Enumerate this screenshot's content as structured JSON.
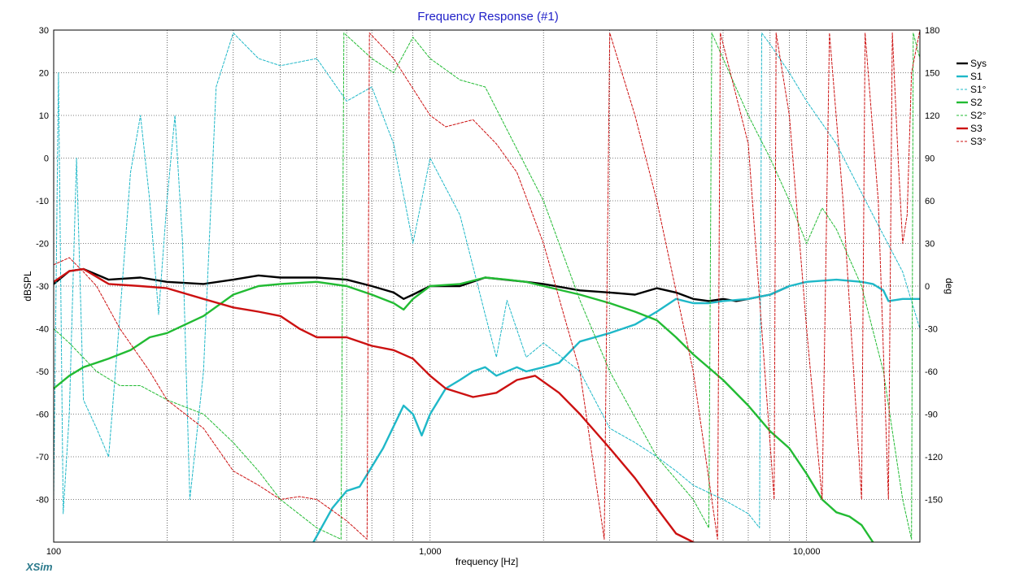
{
  "window": {
    "brand": "XSim"
  },
  "chart_data": {
    "type": "line",
    "title": "Frequency Response (#1)",
    "xlabel": "frequency [Hz]",
    "ylabel": "dBSPL",
    "y2label": "deg",
    "xscale": "log",
    "xlim": [
      100,
      20000
    ],
    "ylim": [
      -90,
      30
    ],
    "y2lim": [
      -180,
      180
    ],
    "x_tick_labels": [
      "100",
      "1,000",
      "10,000"
    ],
    "y_ticks": [
      30,
      20,
      10,
      0,
      -10,
      -20,
      -30,
      -40,
      -50,
      -60,
      -70,
      -80
    ],
    "y2_ticks": [
      180,
      150,
      120,
      90,
      60,
      30,
      0,
      -30,
      -60,
      -90,
      -120,
      -150
    ],
    "grid": true,
    "legend_position": "right",
    "series": [
      {
        "name": "Sys",
        "axis": "left",
        "style": "solid",
        "color": "#000000",
        "points": [
          [
            100,
            -29.5
          ],
          [
            110,
            -26.5
          ],
          [
            120,
            -26
          ],
          [
            140,
            -28.5
          ],
          [
            170,
            -28
          ],
          [
            200,
            -29
          ],
          [
            250,
            -29.5
          ],
          [
            300,
            -28.5
          ],
          [
            350,
            -27.5
          ],
          [
            400,
            -28
          ],
          [
            500,
            -28
          ],
          [
            600,
            -28.5
          ],
          [
            700,
            -30
          ],
          [
            800,
            -31.5
          ],
          [
            850,
            -33
          ],
          [
            900,
            -32
          ],
          [
            1000,
            -30
          ],
          [
            1200,
            -30
          ],
          [
            1400,
            -28
          ],
          [
            1800,
            -29
          ],
          [
            2000,
            -29.5
          ],
          [
            2500,
            -31
          ],
          [
            3000,
            -31.5
          ],
          [
            3500,
            -32
          ],
          [
            4000,
            -30.5
          ],
          [
            4500,
            -31.5
          ],
          [
            5000,
            -33
          ],
          [
            5500,
            -33.5
          ],
          [
            6000,
            -33
          ],
          [
            6500,
            -33.5
          ],
          [
            7000,
            -33
          ],
          [
            8000,
            -32
          ],
          [
            9000,
            -30
          ]
        ]
      },
      {
        "name": "S1",
        "axis": "left",
        "style": "solid",
        "color": "#1fb8c8",
        "points": [
          [
            490,
            -90
          ],
          [
            550,
            -82
          ],
          [
            600,
            -78
          ],
          [
            650,
            -77
          ],
          [
            750,
            -68
          ],
          [
            850,
            -58
          ],
          [
            900,
            -60
          ],
          [
            950,
            -65
          ],
          [
            1000,
            -60
          ],
          [
            1100,
            -54
          ],
          [
            1200,
            -52
          ],
          [
            1300,
            -50
          ],
          [
            1400,
            -49
          ],
          [
            1500,
            -51
          ],
          [
            1700,
            -49
          ],
          [
            1800,
            -50
          ],
          [
            2000,
            -49
          ],
          [
            2200,
            -48
          ],
          [
            2500,
            -43
          ],
          [
            3000,
            -41
          ],
          [
            3500,
            -39
          ],
          [
            4000,
            -36
          ],
          [
            4500,
            -33
          ],
          [
            5000,
            -34
          ],
          [
            5500,
            -34
          ],
          [
            6000,
            -33.5
          ],
          [
            7000,
            -33
          ],
          [
            8000,
            -32
          ],
          [
            9000,
            -30
          ],
          [
            10000,
            -29
          ],
          [
            12000,
            -28.5
          ],
          [
            14000,
            -29
          ],
          [
            15000,
            -29.5
          ],
          [
            16000,
            -31
          ],
          [
            16500,
            -33.5
          ],
          [
            18000,
            -33
          ],
          [
            20000,
            -33
          ]
        ]
      },
      {
        "name": "S1°",
        "axis": "right",
        "style": "dashed",
        "color": "#1fb8c8",
        "points": [
          [
            100,
            -150
          ],
          [
            103,
            150
          ],
          [
            106,
            -160
          ],
          [
            110,
            -90
          ],
          [
            115,
            90
          ],
          [
            120,
            -80
          ],
          [
            130,
            -100
          ],
          [
            140,
            -120
          ],
          [
            150,
            -20
          ],
          [
            160,
            80
          ],
          [
            170,
            120
          ],
          [
            180,
            60
          ],
          [
            190,
            -20
          ],
          [
            200,
            60
          ],
          [
            210,
            120
          ],
          [
            220,
            30
          ],
          [
            230,
            -150
          ],
          [
            250,
            -60
          ],
          [
            270,
            140
          ],
          [
            300,
            178
          ],
          [
            350,
            160
          ],
          [
            400,
            155
          ],
          [
            500,
            160
          ],
          [
            600,
            130
          ],
          [
            700,
            140
          ],
          [
            800,
            100
          ],
          [
            900,
            30
          ],
          [
            1000,
            90
          ],
          [
            1200,
            50
          ],
          [
            1400,
            -20
          ],
          [
            1500,
            -50
          ],
          [
            1600,
            -10
          ],
          [
            1800,
            -50
          ],
          [
            2000,
            -40
          ],
          [
            2500,
            -60
          ],
          [
            3000,
            -100
          ],
          [
            3500,
            -110
          ],
          [
            4000,
            -120
          ],
          [
            4500,
            -130
          ],
          [
            5000,
            -140
          ],
          [
            6000,
            -150
          ],
          [
            7000,
            -160
          ],
          [
            7500,
            -170
          ],
          [
            7600,
            178
          ],
          [
            8000,
            170
          ],
          [
            9000,
            150
          ],
          [
            10000,
            130
          ],
          [
            12000,
            100
          ],
          [
            15000,
            50
          ],
          [
            18000,
            10
          ],
          [
            20000,
            -30
          ]
        ]
      },
      {
        "name": "S2",
        "axis": "left",
        "style": "solid",
        "color": "#22bb33",
        "points": [
          [
            100,
            -54
          ],
          [
            110,
            -51
          ],
          [
            120,
            -49
          ],
          [
            140,
            -47
          ],
          [
            160,
            -45
          ],
          [
            180,
            -42
          ],
          [
            200,
            -41
          ],
          [
            250,
            -37
          ],
          [
            300,
            -32
          ],
          [
            350,
            -30
          ],
          [
            400,
            -29.5
          ],
          [
            500,
            -29
          ],
          [
            600,
            -30
          ],
          [
            700,
            -32
          ],
          [
            800,
            -34
          ],
          [
            850,
            -35.5
          ],
          [
            900,
            -33
          ],
          [
            1000,
            -30
          ],
          [
            1200,
            -29.5
          ],
          [
            1400,
            -28
          ],
          [
            1600,
            -28.5
          ],
          [
            1800,
            -29
          ],
          [
            2000,
            -30
          ],
          [
            2500,
            -32
          ],
          [
            3000,
            -34
          ],
          [
            3500,
            -36
          ],
          [
            4000,
            -38
          ],
          [
            4500,
            -42
          ],
          [
            5000,
            -46
          ],
          [
            6000,
            -52
          ],
          [
            7000,
            -58
          ],
          [
            8000,
            -64
          ],
          [
            9000,
            -68
          ],
          [
            10000,
            -74
          ],
          [
            11000,
            -80
          ],
          [
            12000,
            -83
          ],
          [
            13000,
            -84
          ],
          [
            14000,
            -86
          ],
          [
            15000,
            -90
          ]
        ]
      },
      {
        "name": "S2°",
        "axis": "right",
        "style": "dashed",
        "color": "#22bb33",
        "points": [
          [
            100,
            -30
          ],
          [
            110,
            -40
          ],
          [
            130,
            -60
          ],
          [
            150,
            -70
          ],
          [
            170,
            -70
          ],
          [
            200,
            -80
          ],
          [
            250,
            -90
          ],
          [
            300,
            -110
          ],
          [
            350,
            -130
          ],
          [
            400,
            -150
          ],
          [
            500,
            -170
          ],
          [
            580,
            -178
          ],
          [
            590,
            178
          ],
          [
            700,
            160
          ],
          [
            800,
            150
          ],
          [
            900,
            175
          ],
          [
            1000,
            160
          ],
          [
            1200,
            145
          ],
          [
            1400,
            140
          ],
          [
            1600,
            110
          ],
          [
            2000,
            60
          ],
          [
            2500,
            -10
          ],
          [
            3000,
            -60
          ],
          [
            4000,
            -120
          ],
          [
            5000,
            -150
          ],
          [
            5500,
            -170
          ],
          [
            5600,
            178
          ],
          [
            6000,
            160
          ],
          [
            7000,
            120
          ],
          [
            8000,
            90
          ],
          [
            9000,
            60
          ],
          [
            10000,
            30
          ],
          [
            11000,
            55
          ],
          [
            12000,
            40
          ],
          [
            14000,
            0
          ],
          [
            16000,
            -60
          ],
          [
            18000,
            -150
          ],
          [
            19000,
            -178
          ],
          [
            19200,
            178
          ],
          [
            20000,
            160
          ]
        ]
      },
      {
        "name": "S3",
        "axis": "left",
        "style": "solid",
        "color": "#cc1111",
        "points": [
          [
            100,
            -29
          ],
          [
            110,
            -26.5
          ],
          [
            120,
            -26
          ],
          [
            140,
            -29.5
          ],
          [
            170,
            -30
          ],
          [
            200,
            -30.5
          ],
          [
            250,
            -33
          ],
          [
            300,
            -35
          ],
          [
            350,
            -36
          ],
          [
            400,
            -37
          ],
          [
            450,
            -40
          ],
          [
            500,
            -42
          ],
          [
            600,
            -42
          ],
          [
            700,
            -44
          ],
          [
            800,
            -45
          ],
          [
            900,
            -47
          ],
          [
            1000,
            -51
          ],
          [
            1100,
            -54
          ],
          [
            1300,
            -56
          ],
          [
            1500,
            -55
          ],
          [
            1700,
            -52
          ],
          [
            1900,
            -51
          ],
          [
            2200,
            -55
          ],
          [
            2500,
            -60
          ],
          [
            3000,
            -68
          ],
          [
            3500,
            -75
          ],
          [
            4000,
            -82
          ],
          [
            4500,
            -88
          ],
          [
            5000,
            -90
          ]
        ]
      },
      {
        "name": "S3°",
        "axis": "right",
        "style": "dashed",
        "color": "#cc1111",
        "points": [
          [
            100,
            15
          ],
          [
            110,
            20
          ],
          [
            120,
            10
          ],
          [
            130,
            0
          ],
          [
            150,
            -30
          ],
          [
            180,
            -60
          ],
          [
            200,
            -80
          ],
          [
            250,
            -100
          ],
          [
            300,
            -130
          ],
          [
            350,
            -140
          ],
          [
            400,
            -150
          ],
          [
            450,
            -148
          ],
          [
            500,
            -150
          ],
          [
            600,
            -165
          ],
          [
            680,
            -178
          ],
          [
            690,
            178
          ],
          [
            800,
            160
          ],
          [
            1000,
            120
          ],
          [
            1100,
            112
          ],
          [
            1300,
            117
          ],
          [
            1500,
            100
          ],
          [
            1700,
            80
          ],
          [
            2000,
            30
          ],
          [
            2500,
            -60
          ],
          [
            2900,
            -178
          ],
          [
            3000,
            178
          ],
          [
            3500,
            120
          ],
          [
            4000,
            60
          ],
          [
            5000,
            -60
          ],
          [
            5800,
            -178
          ],
          [
            5900,
            178
          ],
          [
            7000,
            100
          ],
          [
            8200,
            -150
          ],
          [
            8300,
            178
          ],
          [
            9000,
            120
          ],
          [
            10000,
            -30
          ],
          [
            11000,
            -150
          ],
          [
            11500,
            178
          ],
          [
            12500,
            60
          ],
          [
            14000,
            -150
          ],
          [
            14300,
            178
          ],
          [
            15500,
            60
          ],
          [
            16500,
            -150
          ],
          [
            16900,
            178
          ],
          [
            17500,
            90
          ],
          [
            18000,
            30
          ],
          [
            18500,
            50
          ],
          [
            19000,
            150
          ],
          [
            20000,
            180
          ]
        ]
      }
    ]
  }
}
